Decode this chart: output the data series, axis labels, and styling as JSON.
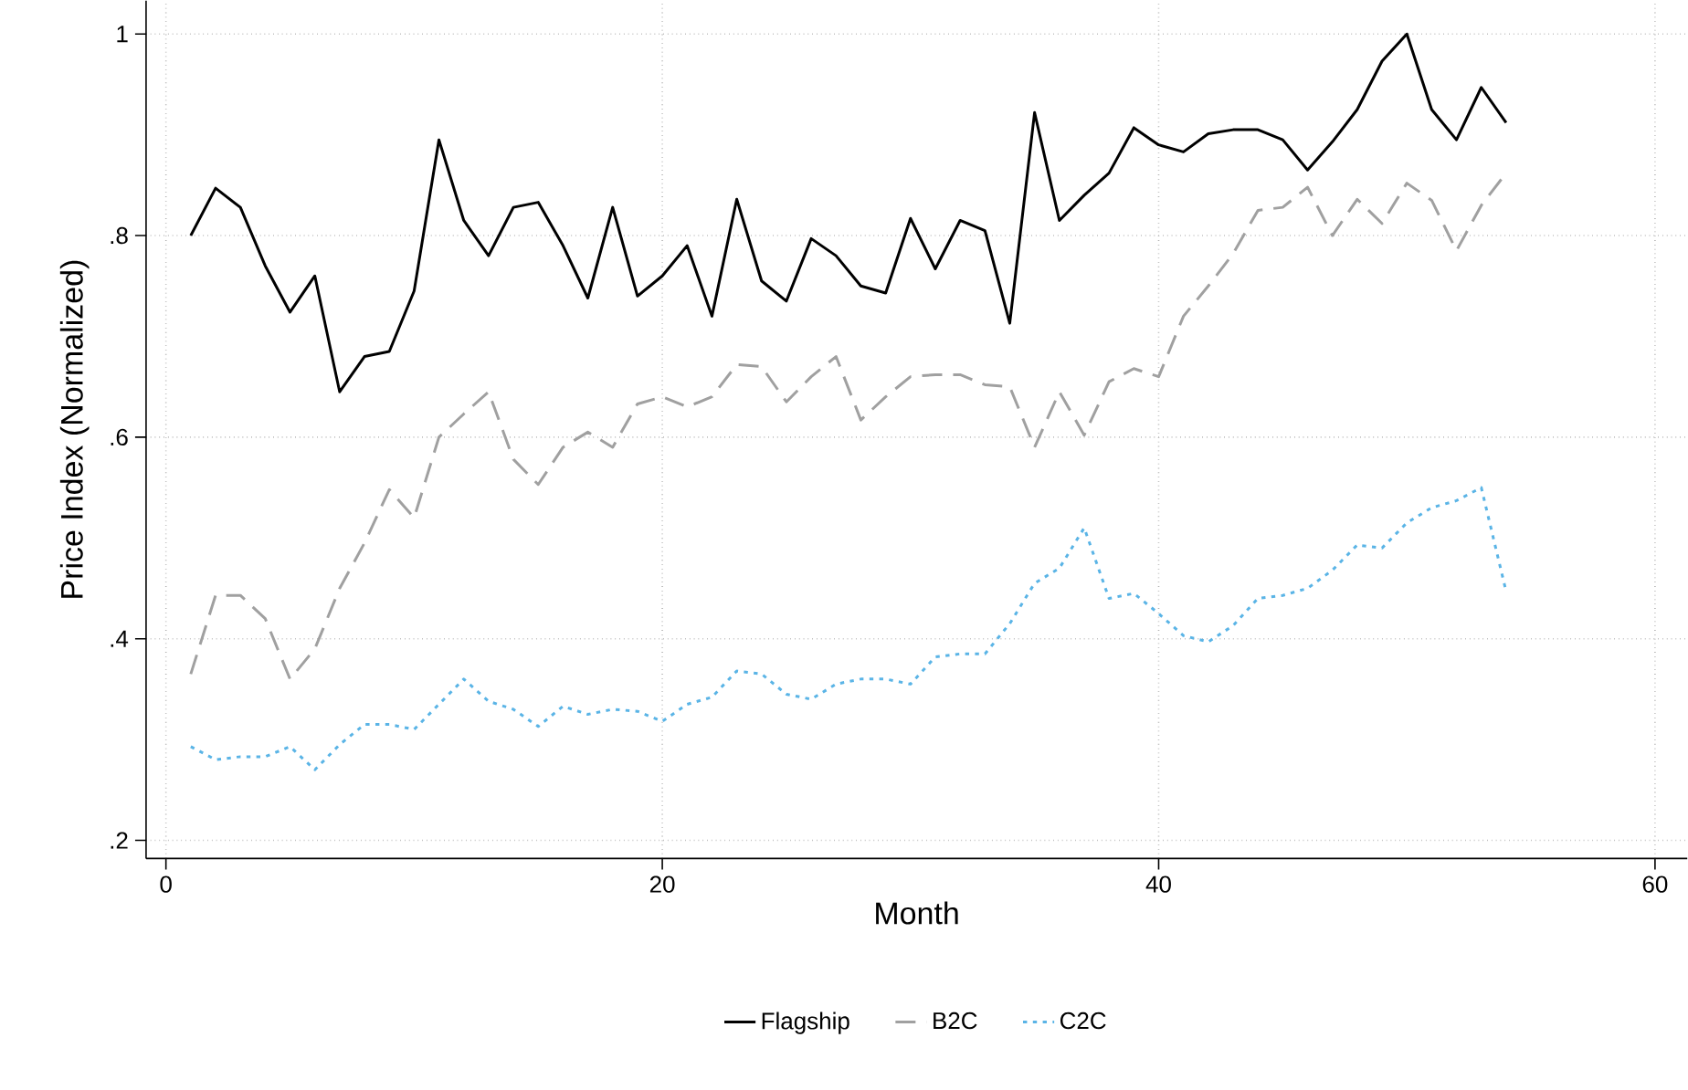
{
  "chart_data": {
    "type": "line",
    "xlabel": "Month",
    "ylabel": "Price Index (Normalized)",
    "x": [
      1,
      2,
      3,
      4,
      5,
      6,
      7,
      8,
      9,
      10,
      11,
      12,
      13,
      14,
      15,
      16,
      17,
      18,
      19,
      20,
      21,
      22,
      23,
      24,
      25,
      26,
      27,
      28,
      29,
      30,
      31,
      32,
      33,
      34,
      35,
      36,
      37,
      38,
      39,
      40,
      41,
      42,
      43,
      44,
      45,
      46,
      47,
      48,
      49,
      50,
      51,
      52,
      53,
      54
    ],
    "xlim": [
      -0.8,
      61.3
    ],
    "xticks": [
      0,
      20,
      40,
      60
    ],
    "ylim": [
      0.182,
      1.033
    ],
    "yticks": [
      {
        "value": 0.2,
        "label": ".2"
      },
      {
        "value": 0.4,
        "label": ".4"
      },
      {
        "value": 0.6,
        "label": ".6"
      },
      {
        "value": 0.8,
        "label": ".8"
      },
      {
        "value": 1,
        "label": "1"
      }
    ],
    "grid": true,
    "legend": "bottom",
    "marker": "none",
    "series": [
      {
        "name": "Flagship",
        "color": "#000000",
        "line_style": "solid",
        "values": [
          0.8,
          0.847,
          0.828,
          0.77,
          0.724,
          0.76,
          0.645,
          0.68,
          0.685,
          0.745,
          0.895,
          0.815,
          0.78,
          0.828,
          0.833,
          0.79,
          0.738,
          0.828,
          0.74,
          0.76,
          0.79,
          0.72,
          0.836,
          0.755,
          0.735,
          0.797,
          0.78,
          0.75,
          0.743,
          0.817,
          0.767,
          0.815,
          0.805,
          0.713,
          0.922,
          0.815,
          0.84,
          0.862,
          0.907,
          0.89,
          0.883,
          0.901,
          0.905,
          0.905,
          0.895,
          0.865,
          0.893,
          0.925,
          0.973,
          1.0,
          0.925,
          0.895,
          0.947,
          0.912
        ]
      },
      {
        "name": "B2C",
        "color": "#a0a0a0",
        "line_style": "dashed",
        "values": [
          0.365,
          0.443,
          0.443,
          0.42,
          0.36,
          0.39,
          0.45,
          0.495,
          0.548,
          0.52,
          0.6,
          0.623,
          0.645,
          0.578,
          0.553,
          0.59,
          0.605,
          0.59,
          0.633,
          0.64,
          0.63,
          0.64,
          0.672,
          0.67,
          0.635,
          0.66,
          0.68,
          0.617,
          0.64,
          0.66,
          0.662,
          0.662,
          0.652,
          0.65,
          0.59,
          0.645,
          0.602,
          0.655,
          0.668,
          0.66,
          0.72,
          0.75,
          0.782,
          0.825,
          0.828,
          0.848,
          0.8,
          0.836,
          0.812,
          0.852,
          0.835,
          0.785,
          0.83,
          0.862
        ]
      },
      {
        "name": "C2C",
        "color": "#5ab4e6",
        "line_style": "dotted",
        "values": [
          0.293,
          0.28,
          0.283,
          0.283,
          0.293,
          0.27,
          0.295,
          0.315,
          0.315,
          0.31,
          0.335,
          0.36,
          0.338,
          0.33,
          0.313,
          0.333,
          0.325,
          0.33,
          0.328,
          0.318,
          0.335,
          0.342,
          0.368,
          0.365,
          0.345,
          0.34,
          0.355,
          0.36,
          0.36,
          0.355,
          0.382,
          0.385,
          0.385,
          0.415,
          0.455,
          0.47,
          0.51,
          0.44,
          0.445,
          0.425,
          0.403,
          0.397,
          0.413,
          0.44,
          0.443,
          0.45,
          0.468,
          0.493,
          0.49,
          0.515,
          0.53,
          0.537,
          0.55,
          0.447
        ]
      }
    ]
  }
}
